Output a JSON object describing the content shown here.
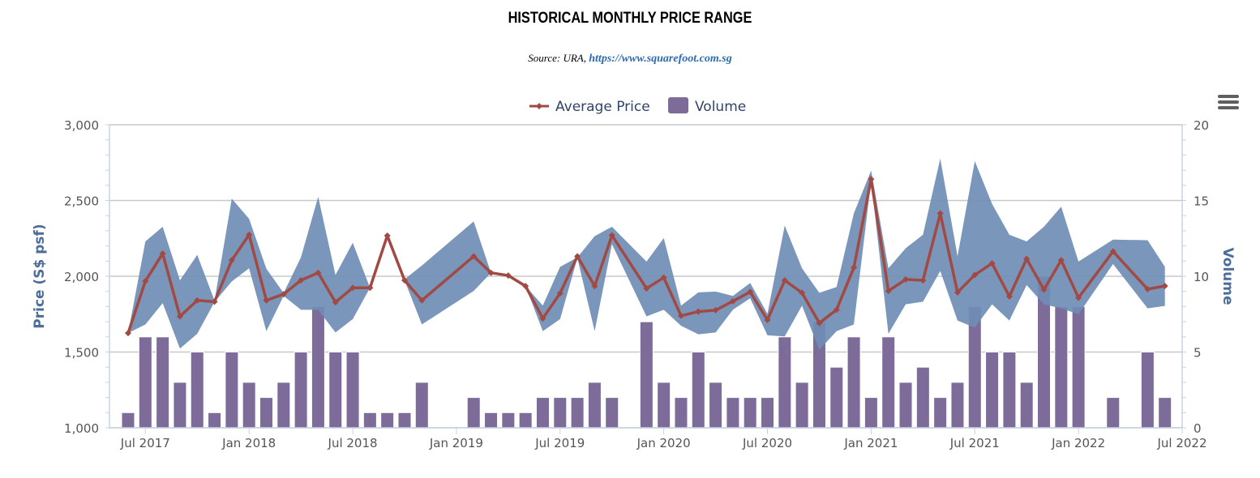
{
  "title": "HISTORICAL MONTHLY PRICE RANGE",
  "subtitle": {
    "source_label": "Source: URA, ",
    "link_text": "https://www.squarefoot.com.sg"
  },
  "menu": {
    "icon": "hamburger-menu-icon"
  },
  "colors": {
    "average_line": "#a14a44",
    "range_band": "#6f8db5",
    "volume_bar": "#7d6b9a",
    "axis_title": "#4c6d9c",
    "grid": "#c8c8c8",
    "axis_line": "#c5d3e6"
  },
  "chart_data": {
    "type": "line",
    "title": "HISTORICAL MONTHLY PRICE RANGE",
    "subtitle": "Source: URA, https://www.squarefoot.com.sg",
    "legend": {
      "position": "top-center",
      "entries": [
        "Average Price",
        "Volume"
      ]
    },
    "xaxis": {
      "type": "datetime-month",
      "start": "2017-06",
      "end": "2022-07",
      "tick_labels": [
        "Jul 2017",
        "Jan 2018",
        "Jul 2018",
        "Jan 2019",
        "Jul 2019",
        "Jan 2020",
        "Jul 2020",
        "Jan 2021",
        "Jul 2021",
        "Jan 2022",
        "Jul 2022"
      ]
    },
    "yaxis_left": {
      "label": "Price (S$ psf)",
      "range": [
        1000,
        3000
      ],
      "tick_labels": [
        "1,000",
        "1,500",
        "2,000",
        "2,500",
        "3,000"
      ],
      "ticks": [
        1000,
        1500,
        2000,
        2500,
        3000
      ]
    },
    "yaxis_right": {
      "label": "Volume",
      "range": [
        0,
        20
      ],
      "tick_labels": [
        "0",
        "5",
        "10",
        "15",
        "20"
      ],
      "ticks": [
        0,
        5,
        10,
        15,
        20
      ]
    },
    "grid": true,
    "series": [
      {
        "name": "Average Price",
        "type": "line",
        "axis": "left"
      },
      {
        "name": "Price Range",
        "type": "arearange",
        "axis": "left"
      },
      {
        "name": "Volume",
        "type": "column",
        "axis": "right"
      }
    ],
    "points": [
      {
        "month": "2017-06",
        "avg": 1625,
        "low": 1625,
        "high": 1625,
        "volume": 1
      },
      {
        "month": "2017-07",
        "avg": 1968,
        "low": 1682,
        "high": 2230,
        "volume": 6
      },
      {
        "month": "2017-08",
        "avg": 2150,
        "low": 1823,
        "high": 2327,
        "volume": 6
      },
      {
        "month": "2017-09",
        "avg": 1735,
        "low": 1523,
        "high": 1973,
        "volume": 3
      },
      {
        "month": "2017-10",
        "avg": 1841,
        "low": 1620,
        "high": 2141,
        "volume": 5
      },
      {
        "month": "2017-11",
        "avg": 1832,
        "low": 1830,
        "high": 1840,
        "volume": 1
      },
      {
        "month": "2017-12",
        "avg": 2106,
        "low": 1966,
        "high": 2512,
        "volume": 5
      },
      {
        "month": "2018-01",
        "avg": 2274,
        "low": 2053,
        "high": 2380,
        "volume": 3
      },
      {
        "month": "2018-02",
        "avg": 1841,
        "low": 1638,
        "high": 2050,
        "volume": 2
      },
      {
        "month": "2018-03",
        "avg": 1882,
        "low": 1870,
        "high": 1890,
        "volume": 3
      },
      {
        "month": "2018-04",
        "avg": 1973,
        "low": 1779,
        "high": 2124,
        "volume": 5
      },
      {
        "month": "2018-05",
        "avg": 2023,
        "low": 1779,
        "high": 2525,
        "volume": 8
      },
      {
        "month": "2018-06",
        "avg": 1829,
        "low": 1629,
        "high": 2009,
        "volume": 5
      },
      {
        "month": "2018-07",
        "avg": 1924,
        "low": 1717,
        "high": 2221,
        "volume": 5
      },
      {
        "month": "2018-08",
        "avg": 1924,
        "low": 1924,
        "high": 1924,
        "volume": 1
      },
      {
        "month": "2018-09",
        "avg": 2268,
        "low": 2268,
        "high": 2268,
        "volume": 1
      },
      {
        "month": "2018-10",
        "avg": 1973,
        "low": 1973,
        "high": 1980,
        "volume": 1
      },
      {
        "month": "2018-11",
        "avg": 1841,
        "low": 1682,
        "high": 2071,
        "volume": 3
      },
      {
        "month": "2019-02",
        "avg": 2132,
        "low": 1903,
        "high": 2362,
        "volume": 2
      },
      {
        "month": "2019-03",
        "avg": 2023,
        "low": 2023,
        "high": 2023,
        "volume": 1
      },
      {
        "month": "2019-04",
        "avg": 2005,
        "low": 2005,
        "high": 2005,
        "volume": 1
      },
      {
        "month": "2019-05",
        "avg": 1935,
        "low": 1935,
        "high": 1935,
        "volume": 1
      },
      {
        "month": "2019-06",
        "avg": 1722,
        "low": 1638,
        "high": 1807,
        "volume": 2
      },
      {
        "month": "2019-07",
        "avg": 1888,
        "low": 1717,
        "high": 2062,
        "volume": 2
      },
      {
        "month": "2019-08",
        "avg": 2132,
        "low": 2120,
        "high": 2124,
        "volume": 2
      },
      {
        "month": "2019-09",
        "avg": 1935,
        "low": 1638,
        "high": 2265,
        "volume": 3
      },
      {
        "month": "2019-10",
        "avg": 2270,
        "low": 2212,
        "high": 2327,
        "volume": 2
      },
      {
        "month": "2019-12",
        "avg": 1920,
        "low": 1735,
        "high": 2097,
        "volume": 7
      },
      {
        "month": "2020-01",
        "avg": 1991,
        "low": 1779,
        "high": 2252,
        "volume": 3
      },
      {
        "month": "2020-02",
        "avg": 1739,
        "low": 1673,
        "high": 1806,
        "volume": 2
      },
      {
        "month": "2020-03",
        "avg": 1767,
        "low": 1617,
        "high": 1894,
        "volume": 5
      },
      {
        "month": "2020-04",
        "avg": 1776,
        "low": 1629,
        "high": 1899,
        "volume": 3
      },
      {
        "month": "2020-05",
        "avg": 1835,
        "low": 1779,
        "high": 1870,
        "volume": 2
      },
      {
        "month": "2020-06",
        "avg": 1897,
        "low": 1855,
        "high": 1956,
        "volume": 2
      },
      {
        "month": "2020-07",
        "avg": 1712,
        "low": 1610,
        "high": 1753,
        "volume": 2
      },
      {
        "month": "2020-08",
        "avg": 1973,
        "low": 1603,
        "high": 2334,
        "volume": 6
      },
      {
        "month": "2020-09",
        "avg": 1891,
        "low": 1806,
        "high": 2053,
        "volume": 3
      },
      {
        "month": "2020-10",
        "avg": 1691,
        "low": 1514,
        "high": 1891,
        "volume": 7
      },
      {
        "month": "2020-11",
        "avg": 1779,
        "low": 1638,
        "high": 1929,
        "volume": 4
      },
      {
        "month": "2020-12",
        "avg": 2058,
        "low": 1682,
        "high": 2415,
        "volume": 6
      },
      {
        "month": "2021-01",
        "avg": 2641,
        "low": 2630,
        "high": 2698,
        "volume": 2
      },
      {
        "month": "2021-02",
        "avg": 1903,
        "low": 1620,
        "high": 2053,
        "volume": 6
      },
      {
        "month": "2021-03",
        "avg": 1979,
        "low": 1815,
        "high": 2185,
        "volume": 3
      },
      {
        "month": "2021-04",
        "avg": 1973,
        "low": 1832,
        "high": 2274,
        "volume": 4
      },
      {
        "month": "2021-05",
        "avg": 2415,
        "low": 2035,
        "high": 2777,
        "volume": 2
      },
      {
        "month": "2021-06",
        "avg": 1894,
        "low": 1708,
        "high": 2132,
        "volume": 3
      },
      {
        "month": "2021-07",
        "avg": 2009,
        "low": 1661,
        "high": 2760,
        "volume": 8
      },
      {
        "month": "2021-08",
        "avg": 2085,
        "low": 1815,
        "high": 2477,
        "volume": 5
      },
      {
        "month": "2021-09",
        "avg": 1867,
        "low": 1708,
        "high": 2274,
        "volume": 5
      },
      {
        "month": "2021-10",
        "avg": 2115,
        "low": 1942,
        "high": 2230,
        "volume": 3
      },
      {
        "month": "2021-11",
        "avg": 1912,
        "low": 1815,
        "high": 2327,
        "volume": 10
      },
      {
        "month": "2021-12",
        "avg": 2106,
        "low": 1788,
        "high": 2459,
        "volume": 8
      },
      {
        "month": "2022-01",
        "avg": 1858,
        "low": 1749,
        "high": 2097,
        "volume": 8
      },
      {
        "month": "2022-03",
        "avg": 2164,
        "low": 2081,
        "high": 2242,
        "volume": 2
      },
      {
        "month": "2022-05",
        "avg": 1915,
        "low": 1788,
        "high": 2238,
        "volume": 5
      },
      {
        "month": "2022-06",
        "avg": 1936,
        "low": 1804,
        "high": 2062,
        "volume": 2
      }
    ]
  }
}
